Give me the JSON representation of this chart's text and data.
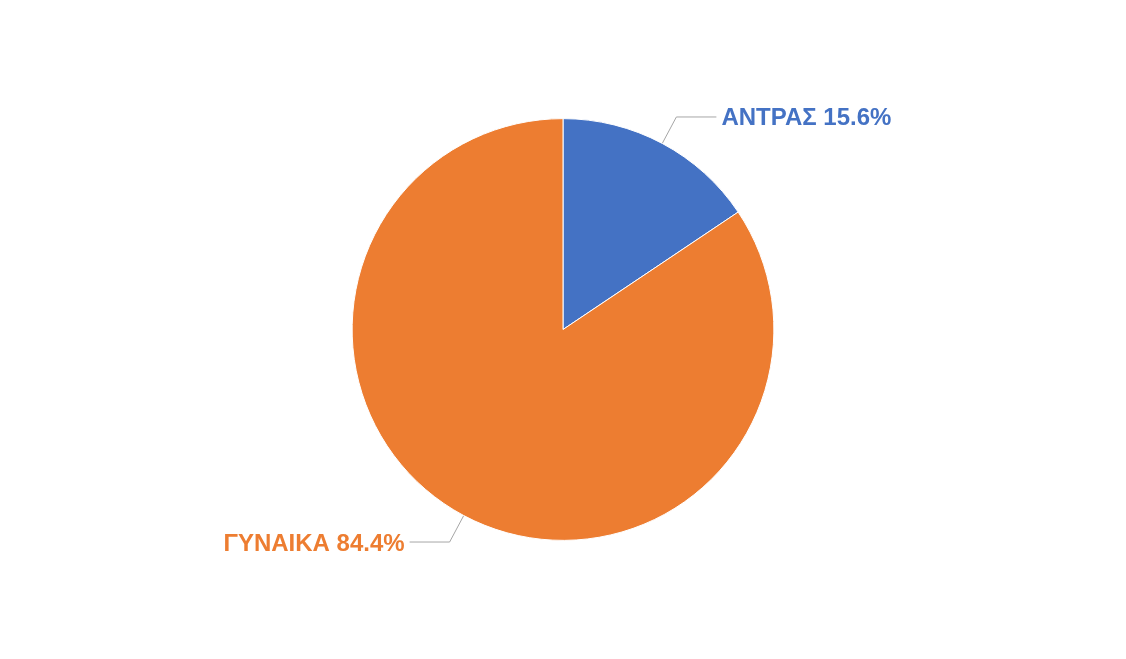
{
  "chart_data": {
    "type": "pie",
    "categories": [
      "ΑΝΤΡΑΣ",
      "ΓΥΝΑΙΚΑ"
    ],
    "values": [
      15.6,
      84.4
    ],
    "colors": [
      "#4472c4",
      "#ed7d31"
    ],
    "value_labels": [
      "15.6%",
      "84.4%"
    ],
    "legend": false
  }
}
